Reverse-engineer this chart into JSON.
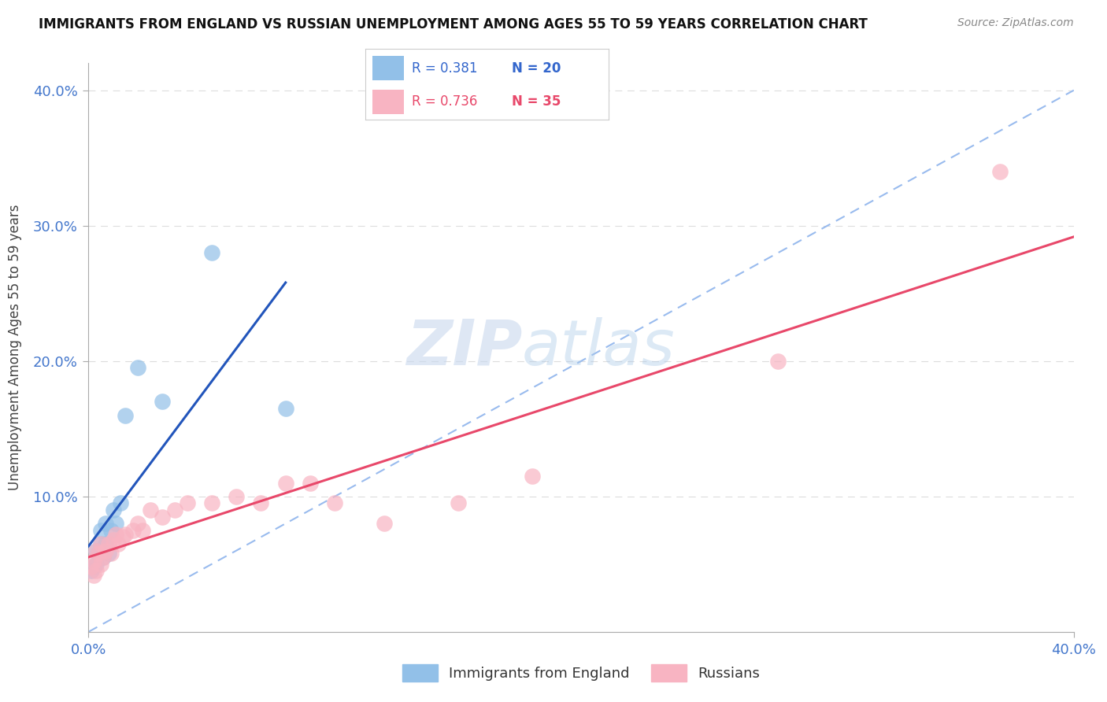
{
  "title": "IMMIGRANTS FROM ENGLAND VS RUSSIAN UNEMPLOYMENT AMONG AGES 55 TO 59 YEARS CORRELATION CHART",
  "source": "Source: ZipAtlas.com",
  "ylabel": "Unemployment Among Ages 55 to 59 years",
  "xlim": [
    0.0,
    0.4
  ],
  "ylim": [
    0.0,
    0.42
  ],
  "england_R": 0.381,
  "england_N": 20,
  "russian_R": 0.736,
  "russian_N": 35,
  "england_color": "#92c0e8",
  "russian_color": "#f8b4c2",
  "england_line_color": "#2255bb",
  "russian_line_color": "#e8486a",
  "diagonal_color": "#99bbee",
  "watermark_zip": "ZIP",
  "watermark_atlas": "atlas",
  "england_x": [
    0.001,
    0.002,
    0.003,
    0.003,
    0.004,
    0.005,
    0.005,
    0.006,
    0.007,
    0.007,
    0.008,
    0.009,
    0.01,
    0.011,
    0.013,
    0.015,
    0.02,
    0.03,
    0.05,
    0.08
  ],
  "england_y": [
    0.045,
    0.048,
    0.05,
    0.06,
    0.058,
    0.065,
    0.075,
    0.055,
    0.065,
    0.08,
    0.058,
    0.075,
    0.09,
    0.08,
    0.095,
    0.16,
    0.195,
    0.17,
    0.28,
    0.165
  ],
  "russian_x": [
    0.001,
    0.002,
    0.002,
    0.003,
    0.003,
    0.004,
    0.005,
    0.005,
    0.006,
    0.007,
    0.008,
    0.009,
    0.01,
    0.011,
    0.012,
    0.014,
    0.015,
    0.018,
    0.02,
    0.022,
    0.025,
    0.03,
    0.035,
    0.04,
    0.05,
    0.06,
    0.07,
    0.08,
    0.09,
    0.1,
    0.12,
    0.15,
    0.18,
    0.28,
    0.37
  ],
  "russian_y": [
    0.048,
    0.042,
    0.052,
    0.045,
    0.06,
    0.058,
    0.05,
    0.065,
    0.055,
    0.06,
    0.065,
    0.058,
    0.068,
    0.072,
    0.065,
    0.07,
    0.072,
    0.075,
    0.08,
    0.075,
    0.09,
    0.085,
    0.09,
    0.095,
    0.095,
    0.1,
    0.095,
    0.11,
    0.11,
    0.095,
    0.08,
    0.095,
    0.115,
    0.2,
    0.34
  ]
}
